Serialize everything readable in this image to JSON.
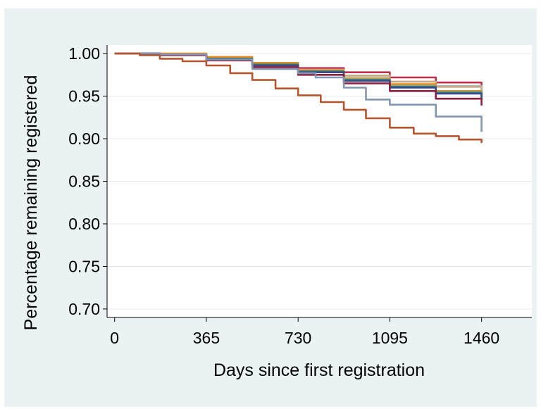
{
  "chart_data": {
    "type": "line",
    "title": "",
    "xlabel": "Days since first registration",
    "ylabel": "Percentage remaining registered",
    "xlim": [
      -30,
      1660
    ],
    "ylim": [
      0.69,
      1.01
    ],
    "xticks": [
      0,
      365,
      730,
      1095,
      1460
    ],
    "xtick_labels": [
      "0",
      "365",
      "730",
      "1095",
      "1460"
    ],
    "yticks": [
      0.7,
      0.75,
      0.8,
      0.85,
      0.9,
      0.95,
      1.0
    ],
    "ytick_labels": [
      "0.70",
      "0.75",
      "0.80",
      "0.85",
      "0.90",
      "0.95",
      "1.00"
    ],
    "grid": true,
    "legend": "none",
    "series": [
      {
        "color": "#c0304a",
        "x": [
          0,
          180,
          365,
          548,
          730,
          912,
          1095,
          1278,
          1460
        ],
        "y": [
          1.0,
          0.999,
          0.994,
          0.988,
          0.983,
          0.978,
          0.972,
          0.966,
          0.961
        ]
      },
      {
        "color": "#a8b8c8",
        "x": [
          0,
          180,
          365,
          548,
          730,
          912,
          1095,
          1278,
          1460
        ],
        "y": [
          1.0,
          0.999,
          0.995,
          0.989,
          0.981,
          0.974,
          0.967,
          0.962,
          0.957
        ]
      },
      {
        "color": "#c9a880",
        "x": [
          0,
          180,
          365,
          548,
          730,
          912,
          1095,
          1278,
          1460
        ],
        "y": [
          1.0,
          0.999,
          0.995,
          0.988,
          0.981,
          0.974,
          0.967,
          0.961,
          0.955
        ]
      },
      {
        "color": "#e08a20",
        "x": [
          0,
          180,
          365,
          548,
          730,
          912,
          1095,
          1278,
          1460
        ],
        "y": [
          1.0,
          1.0,
          0.996,
          0.989,
          0.98,
          0.971,
          0.964,
          0.956,
          0.946
        ]
      },
      {
        "color": "#8aab88",
        "x": [
          0,
          180,
          365,
          548,
          730,
          912,
          1095,
          1278,
          1460
        ],
        "y": [
          1.0,
          0.999,
          0.993,
          0.986,
          0.979,
          0.97,
          0.962,
          0.955,
          0.95
        ]
      },
      {
        "color": "#2e7d79",
        "x": [
          0,
          180,
          365,
          548,
          730,
          912,
          1095,
          1278,
          1460
        ],
        "y": [
          1.0,
          0.999,
          0.994,
          0.987,
          0.979,
          0.969,
          0.961,
          0.954,
          0.948
        ]
      },
      {
        "color": "#3c4a8a",
        "x": [
          0,
          180,
          365,
          548,
          730,
          912,
          1095,
          1278,
          1460
        ],
        "y": [
          1.0,
          0.999,
          0.993,
          0.986,
          0.978,
          0.968,
          0.96,
          0.953,
          0.947
        ]
      },
      {
        "color": "#8a2040",
        "x": [
          0,
          180,
          365,
          548,
          730,
          912,
          1095,
          1278,
          1460
        ],
        "y": [
          1.0,
          0.998,
          0.992,
          0.984,
          0.975,
          0.965,
          0.956,
          0.947,
          0.939
        ]
      },
      {
        "color": "#8096b4",
        "x": [
          0,
          180,
          365,
          548,
          730,
          800,
          912,
          1000,
          1095,
          1278,
          1460
        ],
        "y": [
          1.0,
          0.999,
          0.993,
          0.982,
          0.977,
          0.972,
          0.96,
          0.946,
          0.94,
          0.926,
          0.908
        ]
      },
      {
        "color": "#b5552e",
        "x": [
          0,
          100,
          180,
          270,
          365,
          460,
          548,
          640,
          730,
          820,
          912,
          1000,
          1095,
          1190,
          1278,
          1370,
          1460
        ],
        "y": [
          1.0,
          0.998,
          0.994,
          0.991,
          0.986,
          0.977,
          0.969,
          0.959,
          0.951,
          0.943,
          0.934,
          0.924,
          0.913,
          0.906,
          0.903,
          0.899,
          0.895
        ]
      }
    ]
  }
}
